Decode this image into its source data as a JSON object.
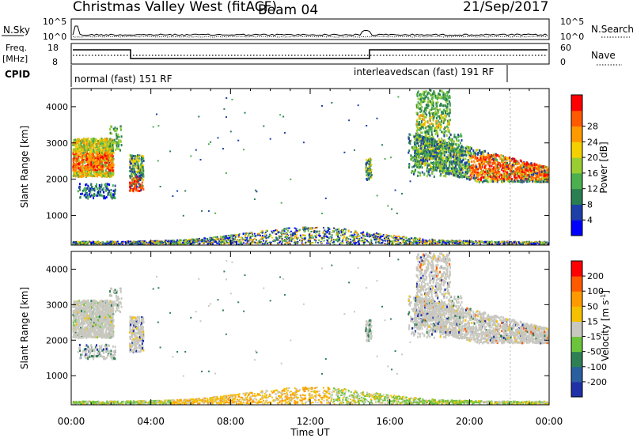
{
  "header": {
    "title": "Christmas Valley West (fitACF)",
    "beam": "Beam 04",
    "date": "21/Sep/2017"
  },
  "noise_panel": {
    "left_label": "N.Sky",
    "right_label": "N.Search",
    "left_ticks": [
      "10^5",
      "10^0"
    ],
    "right_ticks": [
      "10^5",
      "10^0"
    ]
  },
  "freq_panel": {
    "left_label_line1": "Freq.",
    "left_label_line2": "[MHz]",
    "right_label": "Nave",
    "left_ticks": [
      "18",
      "8"
    ],
    "right_ticks": [
      "60",
      "0"
    ]
  },
  "cpid_panel": {
    "label": "CPID",
    "segments": [
      {
        "text": "normal (fast) 151 RF",
        "start_hour": 0,
        "end_hour": 22
      },
      {
        "text": "interleavedscan (fast) 191 RF",
        "start_hour": 15,
        "end_hour": 22
      }
    ]
  },
  "chart_data": [
    {
      "type": "heatmap",
      "name": "Power",
      "ylabel": "Slant Range [km]",
      "ylim": [
        180,
        4500
      ],
      "yticks": [
        "1000",
        "2000",
        "3000",
        "4000"
      ],
      "xlim_hours": [
        0,
        24
      ],
      "colorbar": {
        "label": "Power [dB]",
        "ticks": [
          "4",
          "8",
          "12",
          "16",
          "20",
          "24",
          "28"
        ],
        "colors": [
          "#0000ff",
          "#1e3fa8",
          "#2a7f52",
          "#4caf50",
          "#9acd32",
          "#f5d000",
          "#ff9900",
          "#ff5a00",
          "#ff0000"
        ]
      }
    },
    {
      "type": "heatmap",
      "name": "Velocity",
      "ylabel": "Slant Range [km]",
      "ylim": [
        180,
        4500
      ],
      "yticks": [
        "1000",
        "2000",
        "3000",
        "4000"
      ],
      "xlim_hours": [
        0,
        24
      ],
      "colorbar": {
        "label_main": "Velocity [m s",
        "label_sup": "-1",
        "label_end": "]",
        "ticks": [
          "200",
          "100",
          "50",
          "15",
          "-15",
          "-50",
          "-100",
          "-200"
        ],
        "colors": [
          "#2030a8",
          "#2a5fa0",
          "#2f7f55",
          "#6cc43c",
          "#c8c8c0",
          "#f5c000",
          "#ff9900",
          "#ff5a00",
          "#ff0000"
        ]
      }
    }
  ],
  "xaxis": {
    "label": "Time UT",
    "ticks": [
      "00:00",
      "04:00",
      "08:00",
      "12:00",
      "16:00",
      "20:00",
      "00:00"
    ]
  }
}
